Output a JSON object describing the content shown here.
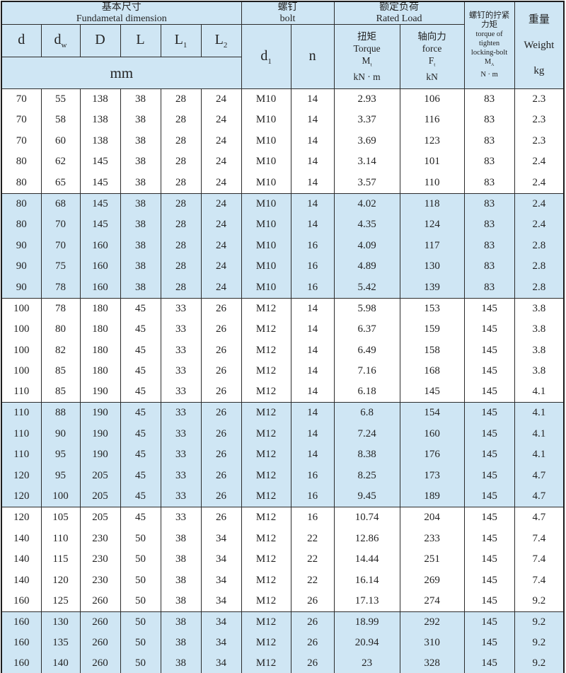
{
  "table": {
    "header": {
      "basic_dim": {
        "zh": "基本尺寸",
        "en": "Fundametal  dimension"
      },
      "bolt": {
        "zh": "螺钉",
        "en": "bolt"
      },
      "rated_load": {
        "zh": "额定负荷",
        "en": "Rated  Load"
      },
      "cols": {
        "d": {
          "base": "d",
          "sub": ""
        },
        "dw": {
          "base": "d",
          "sub": "w"
        },
        "D": {
          "base": "D",
          "sub": ""
        },
        "L": {
          "base": "L",
          "sub": ""
        },
        "L1": {
          "base": "L",
          "sub": "1"
        },
        "L2": {
          "base": "L",
          "sub": "2"
        },
        "d1": {
          "base": "d",
          "sub": "1"
        },
        "n": {
          "base": "n",
          "sub": ""
        }
      },
      "mm_unit": "mm",
      "torque": {
        "zh": "扭矩",
        "en": "Torque",
        "sym": "M",
        "sym_sub": "t",
        "unit": "kN · m"
      },
      "force": {
        "zh": "轴向力",
        "en": "force",
        "sym": "F",
        "sym_sub": "t",
        "unit": "kN"
      },
      "locking_torque": {
        "zh1": "螺钉的拧紧",
        "zh2": "力矩",
        "en1": "torque of",
        "en2": "tighten",
        "en3": "locking-bolt",
        "sym": "M",
        "sym_sub": "A",
        "unit": "N · m"
      },
      "weight": {
        "zh": "重量",
        "en": "Weight",
        "unit": "kg"
      }
    },
    "colors": {
      "band_blue": "#cfe6f4",
      "grid_line": "#2c2c2c",
      "text": "#232323"
    },
    "row_groups": [
      {
        "shaded": false,
        "rows": [
          [
            "70",
            "55",
            "138",
            "38",
            "28",
            "24",
            "M10",
            "14",
            "2.93",
            "106",
            "83",
            "2.3"
          ],
          [
            "70",
            "58",
            "138",
            "38",
            "28",
            "24",
            "M10",
            "14",
            "3.37",
            "116",
            "83",
            "2.3"
          ],
          [
            "70",
            "60",
            "138",
            "38",
            "28",
            "24",
            "M10",
            "14",
            "3.69",
            "123",
            "83",
            "2.3"
          ],
          [
            "80",
            "62",
            "145",
            "38",
            "28",
            "24",
            "M10",
            "14",
            "3.14",
            "101",
            "83",
            "2.4"
          ],
          [
            "80",
            "65",
            "145",
            "38",
            "28",
            "24",
            "M10",
            "14",
            "3.57",
            "110",
            "83",
            "2.4"
          ]
        ]
      },
      {
        "shaded": true,
        "rows": [
          [
            "80",
            "68",
            "145",
            "38",
            "28",
            "24",
            "M10",
            "14",
            "4.02",
            "118",
            "83",
            "2.4"
          ],
          [
            "80",
            "70",
            "145",
            "38",
            "28",
            "24",
            "M10",
            "14",
            "4.35",
            "124",
            "83",
            "2.4"
          ],
          [
            "90",
            "70",
            "160",
            "38",
            "28",
            "24",
            "M10",
            "16",
            "4.09",
            "117",
            "83",
            "2.8"
          ],
          [
            "90",
            "75",
            "160",
            "38",
            "28",
            "24",
            "M10",
            "16",
            "4.89",
            "130",
            "83",
            "2.8"
          ],
          [
            "90",
            "78",
            "160",
            "38",
            "28",
            "24",
            "M10",
            "16",
            "5.42",
            "139",
            "83",
            "2.8"
          ]
        ]
      },
      {
        "shaded": false,
        "rows": [
          [
            "100",
            "78",
            "180",
            "45",
            "33",
            "26",
            "M12",
            "14",
            "5.98",
            "153",
            "145",
            "3.8"
          ],
          [
            "100",
            "80",
            "180",
            "45",
            "33",
            "26",
            "M12",
            "14",
            "6.37",
            "159",
            "145",
            "3.8"
          ],
          [
            "100",
            "82",
            "180",
            "45",
            "33",
            "26",
            "M12",
            "14",
            "6.49",
            "158",
            "145",
            "3.8"
          ],
          [
            "100",
            "85",
            "180",
            "45",
            "33",
            "26",
            "M12",
            "14",
            "7.16",
            "168",
            "145",
            "3.8"
          ],
          [
            "110",
            "85",
            "190",
            "45",
            "33",
            "26",
            "M12",
            "14",
            "6.18",
            "145",
            "145",
            "4.1"
          ]
        ]
      },
      {
        "shaded": true,
        "rows": [
          [
            "110",
            "88",
            "190",
            "45",
            "33",
            "26",
            "M12",
            "14",
            "6.8",
            "154",
            "145",
            "4.1"
          ],
          [
            "110",
            "90",
            "190",
            "45",
            "33",
            "26",
            "M12",
            "14",
            "7.24",
            "160",
            "145",
            "4.1"
          ],
          [
            "110",
            "95",
            "190",
            "45",
            "33",
            "26",
            "M12",
            "14",
            "8.38",
            "176",
            "145",
            "4.1"
          ],
          [
            "120",
            "95",
            "205",
            "45",
            "33",
            "26",
            "M12",
            "16",
            "8.25",
            "173",
            "145",
            "4.7"
          ],
          [
            "120",
            "100",
            "205",
            "45",
            "33",
            "26",
            "M12",
            "16",
            "9.45",
            "189",
            "145",
            "4.7"
          ]
        ]
      },
      {
        "shaded": false,
        "rows": [
          [
            "120",
            "105",
            "205",
            "45",
            "33",
            "26",
            "M12",
            "16",
            "10.74",
            "204",
            "145",
            "4.7"
          ],
          [
            "140",
            "110",
            "230",
            "50",
            "38",
            "34",
            "M12",
            "22",
            "12.86",
            "233",
            "145",
            "7.4"
          ],
          [
            "140",
            "115",
            "230",
            "50",
            "38",
            "34",
            "M12",
            "22",
            "14.44",
            "251",
            "145",
            "7.4"
          ],
          [
            "140",
            "120",
            "230",
            "50",
            "38",
            "34",
            "M12",
            "22",
            "16.14",
            "269",
            "145",
            "7.4"
          ],
          [
            "160",
            "125",
            "260",
            "50",
            "38",
            "34",
            "M12",
            "26",
            "17.13",
            "274",
            "145",
            "9.2"
          ]
        ]
      },
      {
        "shaded": true,
        "rows": [
          [
            "160",
            "130",
            "260",
            "50",
            "38",
            "34",
            "M12",
            "26",
            "18.99",
            "292",
            "145",
            "9.2"
          ],
          [
            "160",
            "135",
            "260",
            "50",
            "38",
            "34",
            "M12",
            "26",
            "20.94",
            "310",
            "145",
            "9.2"
          ],
          [
            "160",
            "140",
            "260",
            "50",
            "38",
            "34",
            "M12",
            "26",
            "23",
            "328",
            "145",
            "9.2"
          ]
        ]
      }
    ]
  }
}
